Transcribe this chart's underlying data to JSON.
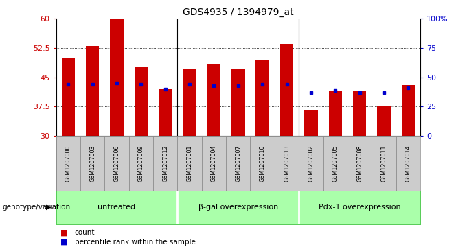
{
  "title": "GDS4935 / 1394979_at",
  "samples": [
    "GSM1207000",
    "GSM1207003",
    "GSM1207006",
    "GSM1207009",
    "GSM1207012",
    "GSM1207001",
    "GSM1207004",
    "GSM1207007",
    "GSM1207010",
    "GSM1207013",
    "GSM1207002",
    "GSM1207005",
    "GSM1207008",
    "GSM1207011",
    "GSM1207014"
  ],
  "counts": [
    50.0,
    53.0,
    60.0,
    47.5,
    42.0,
    47.0,
    48.5,
    47.0,
    49.5,
    53.5,
    36.5,
    41.5,
    41.5,
    37.5,
    43.0
  ],
  "percentiles_left": [
    43.2,
    43.2,
    43.5,
    43.2,
    42.0,
    43.2,
    42.8,
    42.8,
    43.2,
    43.2,
    41.0,
    41.5,
    41.0,
    41.0,
    42.2
  ],
  "bar_color": "#cc0000",
  "blue_color": "#0000cc",
  "ymin": 30,
  "ymax": 60,
  "yticks": [
    30,
    37.5,
    45,
    52.5,
    60
  ],
  "ytick_labels": [
    "30",
    "37.5",
    "45",
    "52.5",
    "60"
  ],
  "y2ticks": [
    0,
    25,
    50,
    75,
    100
  ],
  "y2tick_labels": [
    "0",
    "25",
    "50",
    "75",
    "100%"
  ],
  "groups": [
    {
      "label": "untreated",
      "start": 0,
      "end": 5
    },
    {
      "label": "β-gal overexpression",
      "start": 5,
      "end": 10
    },
    {
      "label": "Pdx-1 overexpression",
      "start": 10,
      "end": 15
    }
  ],
  "group_color": "#aaffaa",
  "group_border_color": "#55cc55",
  "xlabel_left": "genotype/variation",
  "legend_count": "count",
  "legend_percentile": "percentile rank within the sample",
  "bar_width": 0.55,
  "bg_color": "#ffffff",
  "tick_color_left": "#cc0000",
  "tick_color_right": "#0000cc",
  "gray_box_color": "#cccccc",
  "grid_dotted": [
    37.5,
    45,
    52.5
  ]
}
